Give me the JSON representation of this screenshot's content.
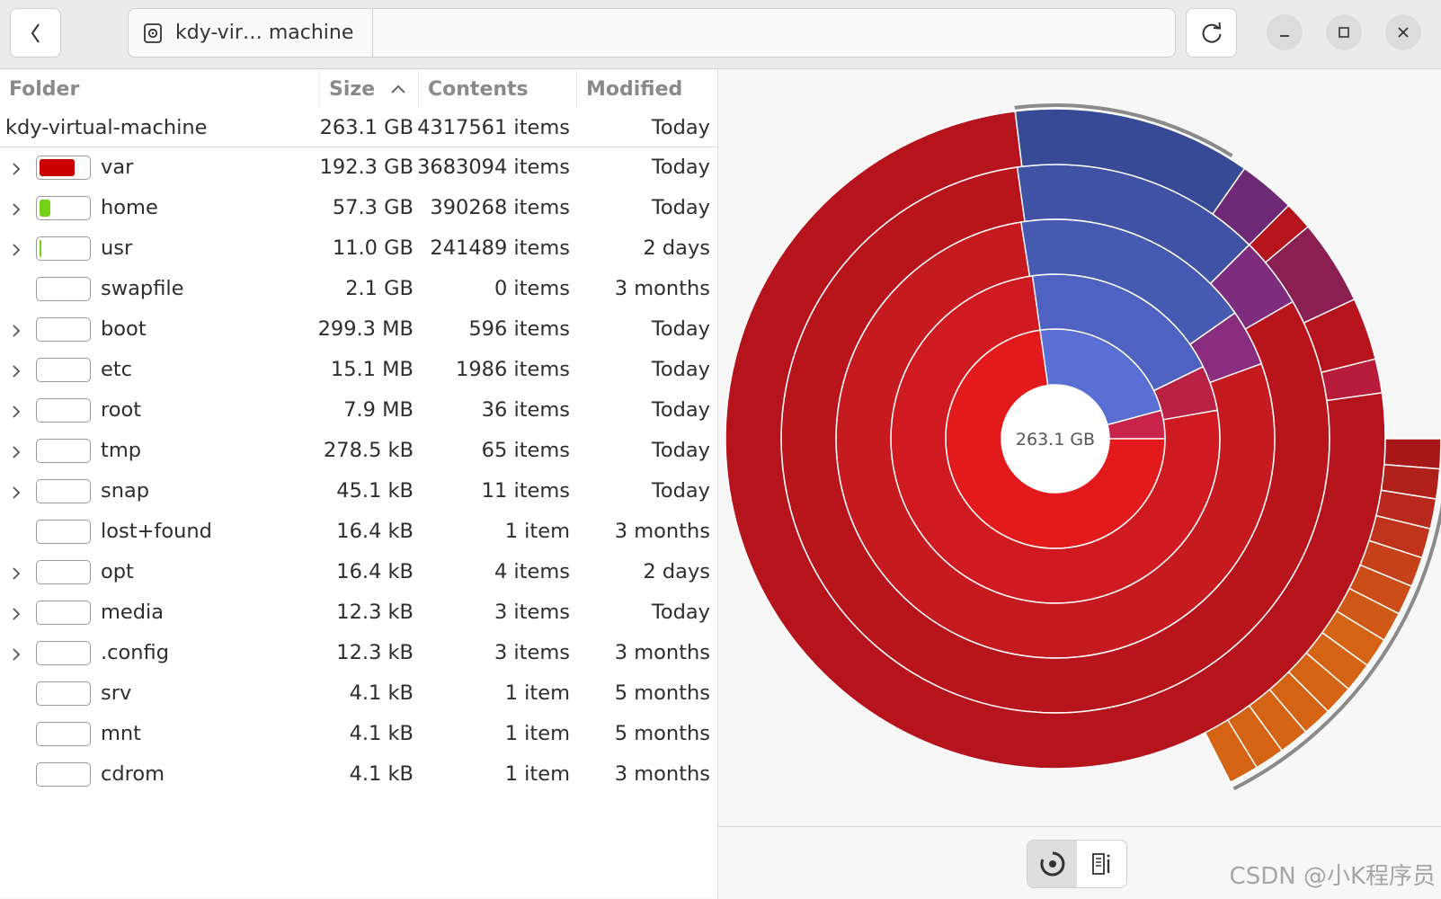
{
  "window": {
    "path_segment": "kdy-vir… machine",
    "back_icon": "chevron-left-icon",
    "reload_icon": "reload-icon",
    "minimize_icon": "minimize-icon",
    "maximize_icon": "maximize-icon",
    "close_icon": "close-icon"
  },
  "table": {
    "headers": {
      "folder": "Folder",
      "size": "Size",
      "contents": "Contents",
      "modified": "Modified"
    },
    "sort_icon": "sort-ascending-icon",
    "root": {
      "name": "kdy-virtual-machine",
      "size": "263.1 GB",
      "contents": "4317561 items",
      "modified": "Today"
    },
    "rows": [
      {
        "name": "var",
        "size": "192.3 GB",
        "contents": "3683094 items",
        "modified": "Today",
        "expandable": true,
        "fraction": 0.73,
        "color": "#cc0000"
      },
      {
        "name": "home",
        "size": "57.3 GB",
        "contents": "390268 items",
        "modified": "Today",
        "expandable": true,
        "fraction": 0.22,
        "color": "#73d216"
      },
      {
        "name": "usr",
        "size": "11.0 GB",
        "contents": "241489 items",
        "modified": "2 days",
        "expandable": true,
        "fraction": 0.04,
        "color": "#73d216"
      },
      {
        "name": "swapfile",
        "size": "2.1 GB",
        "contents": "0 items",
        "modified": "3 months",
        "expandable": false,
        "fraction": 0.0,
        "color": "#73d216"
      },
      {
        "name": "boot",
        "size": "299.3 MB",
        "contents": "596 items",
        "modified": "Today",
        "expandable": true,
        "fraction": 0.0,
        "color": "#73d216"
      },
      {
        "name": "etc",
        "size": "15.1 MB",
        "contents": "1986 items",
        "modified": "Today",
        "expandable": true,
        "fraction": 0.0,
        "color": "#73d216"
      },
      {
        "name": "root",
        "size": "7.9 MB",
        "contents": "36 items",
        "modified": "Today",
        "expandable": true,
        "fraction": 0.0,
        "color": "#73d216"
      },
      {
        "name": "tmp",
        "size": "278.5 kB",
        "contents": "65 items",
        "modified": "Today",
        "expandable": true,
        "fraction": 0.0,
        "color": "#73d216"
      },
      {
        "name": "snap",
        "size": "45.1 kB",
        "contents": "11 items",
        "modified": "Today",
        "expandable": true,
        "fraction": 0.0,
        "color": "#73d216"
      },
      {
        "name": "lost+found",
        "size": "16.4 kB",
        "contents": "1 item",
        "modified": "3 months",
        "expandable": false,
        "fraction": 0.0,
        "color": "#73d216"
      },
      {
        "name": "opt",
        "size": "16.4 kB",
        "contents": "4 items",
        "modified": "2 days",
        "expandable": true,
        "fraction": 0.0,
        "color": "#73d216"
      },
      {
        "name": "media",
        "size": "12.3 kB",
        "contents": "3 items",
        "modified": "Today",
        "expandable": true,
        "fraction": 0.0,
        "color": "#73d216"
      },
      {
        "name": ".config",
        "size": "12.3 kB",
        "contents": "3 items",
        "modified": "3 months",
        "expandable": true,
        "fraction": 0.0,
        "color": "#73d216"
      },
      {
        "name": "srv",
        "size": "4.1 kB",
        "contents": "1 item",
        "modified": "5 months",
        "expandable": false,
        "fraction": 0.0,
        "color": "#73d216"
      },
      {
        "name": "mnt",
        "size": "4.1 kB",
        "contents": "1 item",
        "modified": "5 months",
        "expandable": false,
        "fraction": 0.0,
        "color": "#73d216"
      },
      {
        "name": "cdrom",
        "size": "4.1 kB",
        "contents": "1 item",
        "modified": "3 months",
        "expandable": false,
        "fraction": 0.0,
        "color": "#73d216"
      }
    ]
  },
  "chart": {
    "center_label": "263.1 GB",
    "var_color": "#cc0000",
    "home_color": "#3465a4"
  },
  "view_toggle": {
    "ring_icon": "ring-chart-icon",
    "treemap_icon": "treemap-icon"
  },
  "watermark": "CSDN @小K程序员"
}
